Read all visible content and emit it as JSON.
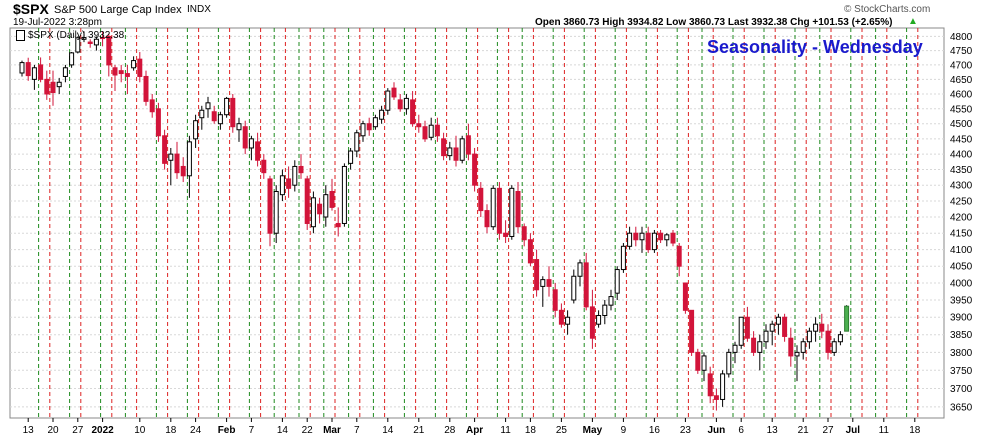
{
  "header": {
    "symbol": "$SPX",
    "description": "S&P 500 Large Cap Index",
    "exchange": "INDX",
    "date": "19-Jul-2022 3:28pm",
    "ohlc": "Open 3860.73  High 3934.82  Low 3860.73  Last 3932.38  Chg +101.53 (+2.65%)",
    "ohlc_arrow": "▲",
    "watermark": "© StockCharts.com"
  },
  "legend": {
    "label": "$SPX (Daily) 3932.38"
  },
  "annotation": {
    "text": "Seasonality - Wednesday",
    "color": "#1a1acc"
  },
  "colors": {
    "up_fill": "#ffffff",
    "up_last": "#4caf50",
    "down": "#d2143a",
    "down_light": "#f09aaa",
    "down_black": "#111111",
    "green_line": "#1f8a1f",
    "red_line": "#dd2222"
  },
  "chart_data": {
    "type": "candlestick",
    "title": "Seasonality - Wednesday",
    "series_name": "$SPX (Daily)",
    "ylim": [
      3620,
      4830
    ],
    "y_ticks": [
      3650,
      3700,
      3750,
      3800,
      3850,
      3900,
      3950,
      4000,
      4050,
      4100,
      4150,
      4200,
      4250,
      4300,
      4350,
      4400,
      4450,
      4500,
      4550,
      4600,
      4650,
      4700,
      4750,
      4800
    ],
    "y_scale": "log",
    "grid": true,
    "x_labels": [
      {
        "label": "13",
        "i": 1
      },
      {
        "label": "20",
        "i": 5
      },
      {
        "label": "27",
        "i": 9
      },
      {
        "label": "2022",
        "i": 13,
        "bold": true
      },
      {
        "label": "10",
        "i": 19
      },
      {
        "label": "18",
        "i": 24
      },
      {
        "label": "24",
        "i": 28
      },
      {
        "label": "Feb",
        "i": 33,
        "bold": true
      },
      {
        "label": "7",
        "i": 37
      },
      {
        "label": "14",
        "i": 42
      },
      {
        "label": "22",
        "i": 46
      },
      {
        "label": "Mar",
        "i": 50,
        "bold": true
      },
      {
        "label": "7",
        "i": 54
      },
      {
        "label": "14",
        "i": 59
      },
      {
        "label": "21",
        "i": 64
      },
      {
        "label": "28",
        "i": 69
      },
      {
        "label": "Apr",
        "i": 73,
        "bold": true
      },
      {
        "label": "11",
        "i": 78
      },
      {
        "label": "18",
        "i": 82
      },
      {
        "label": "25",
        "i": 87
      },
      {
        "label": "May",
        "i": 92,
        "bold": true
      },
      {
        "label": "9",
        "i": 97
      },
      {
        "label": "16",
        "i": 102
      },
      {
        "label": "23",
        "i": 107
      },
      {
        "label": "Jun",
        "i": 112,
        "bold": true
      },
      {
        "label": "6",
        "i": 116
      },
      {
        "label": "13",
        "i": 121
      },
      {
        "label": "21",
        "i": 126
      },
      {
        "label": "27",
        "i": 130
      },
      {
        "label": "Jul",
        "i": 134,
        "bold": true
      },
      {
        "label": "11",
        "i": 139
      },
      {
        "label": "18",
        "i": 144
      }
    ],
    "wednesday_green_lines": [
      3,
      8,
      13,
      17,
      22,
      27,
      32,
      37,
      41,
      45,
      49,
      53,
      57,
      62,
      67,
      72,
      77,
      81,
      86,
      91,
      96,
      101,
      106,
      110,
      115,
      120,
      125,
      129,
      134,
      138,
      143
    ],
    "wednesday_red_lines": [
      4,
      9,
      14,
      18,
      23,
      28,
      33,
      38,
      42,
      46,
      50,
      54,
      58,
      63,
      68,
      73,
      78,
      82,
      87,
      92,
      97,
      102,
      107,
      111,
      116,
      121,
      126,
      130,
      135,
      139,
      144
    ],
    "candles_ohlc": [
      [
        4672,
        4715,
        4660,
        4708
      ],
      [
        4708,
        4725,
        4645,
        4663
      ],
      [
        4650,
        4700,
        4614,
        4690
      ],
      [
        4700,
        4726,
        4640,
        4650
      ],
      [
        4650,
        4680,
        4580,
        4600
      ],
      [
        4640,
        4680,
        4560,
        4605
      ],
      [
        4625,
        4655,
        4600,
        4640
      ],
      [
        4660,
        4700,
        4640,
        4690
      ],
      [
        4700,
        4745,
        4690,
        4742
      ],
      [
        4745,
        4800,
        4740,
        4795
      ],
      [
        4790,
        4818,
        4780,
        4796
      ],
      [
        4780,
        4790,
        4760,
        4775
      ],
      [
        4770,
        4800,
        4750,
        4790
      ],
      [
        4796,
        4818,
        4765,
        4793
      ],
      [
        4800,
        4810,
        4660,
        4700
      ],
      [
        4690,
        4700,
        4610,
        4665
      ],
      [
        4680,
        4700,
        4640,
        4670
      ],
      [
        4670,
        4700,
        4600,
        4660
      ],
      [
        4690,
        4730,
        4680,
        4715
      ],
      [
        4720,
        4745,
        4640,
        4660
      ],
      [
        4660,
        4680,
        4560,
        4575
      ],
      [
        4580,
        4600,
        4520,
        4540
      ],
      [
        4550,
        4570,
        4440,
        4460
      ],
      [
        4460,
        4480,
        4350,
        4370
      ],
      [
        4380,
        4420,
        4300,
        4400
      ],
      [
        4400,
        4440,
        4320,
        4340
      ],
      [
        4360,
        4390,
        4310,
        4330
      ],
      [
        4330,
        4460,
        4260,
        4440
      ],
      [
        4450,
        4530,
        4420,
        4510
      ],
      [
        4520,
        4560,
        4480,
        4545
      ],
      [
        4550,
        4590,
        4520,
        4570
      ],
      [
        4540,
        4560,
        4500,
        4510
      ],
      [
        4500,
        4540,
        4480,
        4530
      ],
      [
        4530,
        4590,
        4520,
        4585
      ],
      [
        4585,
        4600,
        4470,
        4490
      ],
      [
        4480,
        4520,
        4440,
        4500
      ],
      [
        4490,
        4510,
        4400,
        4420
      ],
      [
        4420,
        4460,
        4380,
        4450
      ],
      [
        4440,
        4470,
        4360,
        4380
      ],
      [
        4380,
        4400,
        4320,
        4340
      ],
      [
        4320,
        4330,
        4110,
        4150
      ],
      [
        4150,
        4300,
        4120,
        4280
      ],
      [
        4270,
        4350,
        4250,
        4330
      ],
      [
        4320,
        4360,
        4260,
        4290
      ],
      [
        4300,
        4380,
        4280,
        4360
      ],
      [
        4360,
        4400,
        4320,
        4340
      ],
      [
        4320,
        4330,
        4160,
        4180
      ],
      [
        4170,
        4280,
        4150,
        4260
      ],
      [
        4240,
        4260,
        4180,
        4210
      ],
      [
        4200,
        4300,
        4170,
        4270
      ],
      [
        4280,
        4320,
        4220,
        4230
      ],
      [
        4180,
        4230,
        4140,
        4170
      ],
      [
        4180,
        4370,
        4170,
        4360
      ],
      [
        4370,
        4420,
        4350,
        4410
      ],
      [
        4410,
        4480,
        4390,
        4470
      ],
      [
        4460,
        4510,
        4440,
        4500
      ],
      [
        4500,
        4520,
        4460,
        4480
      ],
      [
        4490,
        4530,
        4480,
        4520
      ],
      [
        4515,
        4560,
        4500,
        4545
      ],
      [
        4545,
        4620,
        4530,
        4610
      ],
      [
        4620,
        4640,
        4580,
        4590
      ],
      [
        4580,
        4600,
        4540,
        4550
      ],
      [
        4550,
        4600,
        4530,
        4585
      ],
      [
        4580,
        4610,
        4490,
        4500
      ],
      [
        4500,
        4530,
        4470,
        4490
      ],
      [
        4490,
        4510,
        4440,
        4450
      ],
      [
        4455,
        4520,
        4445,
        4495
      ],
      [
        4495,
        4520,
        4440,
        4460
      ],
      [
        4450,
        4470,
        4380,
        4395
      ],
      [
        4395,
        4440,
        4380,
        4420
      ],
      [
        4420,
        4460,
        4360,
        4380
      ],
      [
        4380,
        4460,
        4370,
        4450
      ],
      [
        4460,
        4500,
        4380,
        4400
      ],
      [
        4400,
        4420,
        4280,
        4300
      ],
      [
        4290,
        4310,
        4200,
        4220
      ],
      [
        4220,
        4240,
        4150,
        4170
      ],
      [
        4170,
        4300,
        4160,
        4290
      ],
      [
        4290,
        4310,
        4130,
        4150
      ],
      [
        4150,
        4190,
        4120,
        4140
      ],
      [
        4140,
        4300,
        4130,
        4290
      ],
      [
        4280,
        4310,
        4150,
        4170
      ],
      [
        4170,
        4180,
        4110,
        4130
      ],
      [
        4130,
        4150,
        4050,
        4060
      ],
      [
        4070,
        4100,
        3960,
        3980
      ],
      [
        3990,
        4020,
        3930,
        4010
      ],
      [
        4010,
        4050,
        3960,
        3990
      ],
      [
        3980,
        4000,
        3900,
        3920
      ],
      [
        3920,
        3940,
        3870,
        3880
      ],
      [
        3880,
        3920,
        3850,
        3900
      ],
      [
        3950,
        4040,
        3940,
        4020
      ],
      [
        4020,
        4070,
        3990,
        4060
      ],
      [
        4060,
        4090,
        3920,
        3930
      ],
      [
        3930,
        3980,
        3810,
        3840
      ],
      [
        3880,
        3920,
        3870,
        3905
      ],
      [
        3905,
        3950,
        3880,
        3935
      ],
      [
        3935,
        3980,
        3920,
        3960
      ],
      [
        3970,
        4050,
        3950,
        4040
      ],
      [
        4040,
        4120,
        4030,
        4110
      ],
      [
        4110,
        4170,
        4100,
        4150
      ],
      [
        4150,
        4170,
        4110,
        4130
      ],
      [
        4130,
        4170,
        4090,
        4150
      ],
      [
        4150,
        4170,
        4090,
        4100
      ],
      [
        4100,
        4160,
        4090,
        4150
      ],
      [
        4150,
        4160,
        4120,
        4130
      ],
      [
        4130,
        4150,
        4110,
        4145
      ],
      [
        4150,
        4160,
        4110,
        4120
      ],
      [
        4110,
        4120,
        4020,
        4050
      ],
      [
        4000,
        4000,
        3910,
        3920
      ],
      [
        3920,
        3920,
        3790,
        3800
      ],
      [
        3800,
        3810,
        3740,
        3750
      ],
      [
        3750,
        3800,
        3720,
        3790
      ],
      [
        3740,
        3760,
        3660,
        3680
      ],
      [
        3680,
        3700,
        3640,
        3670
      ],
      [
        3670,
        3750,
        3650,
        3740
      ],
      [
        3740,
        3810,
        3730,
        3800
      ],
      [
        3800,
        3830,
        3770,
        3820
      ],
      [
        3820,
        3900,
        3810,
        3900
      ],
      [
        3900,
        3930,
        3830,
        3840
      ],
      [
        3840,
        3860,
        3790,
        3800
      ],
      [
        3800,
        3850,
        3750,
        3830
      ],
      [
        3830,
        3880,
        3810,
        3860
      ],
      [
        3860,
        3890,
        3820,
        3880
      ],
      [
        3880,
        3910,
        3850,
        3900
      ],
      [
        3900,
        3910,
        3830,
        3845
      ],
      [
        3840,
        3870,
        3760,
        3790
      ],
      [
        3790,
        3820,
        3720,
        3800
      ],
      [
        3800,
        3840,
        3780,
        3830
      ],
      [
        3830,
        3870,
        3810,
        3860
      ],
      [
        3860,
        3900,
        3830,
        3880
      ],
      [
        3880,
        3910,
        3840,
        3860
      ],
      [
        3860,
        3880,
        3780,
        3800
      ],
      [
        3800,
        3840,
        3790,
        3830
      ],
      [
        3830,
        3860,
        3820,
        3850
      ],
      [
        3860,
        3935,
        3860,
        3932
      ]
    ]
  }
}
